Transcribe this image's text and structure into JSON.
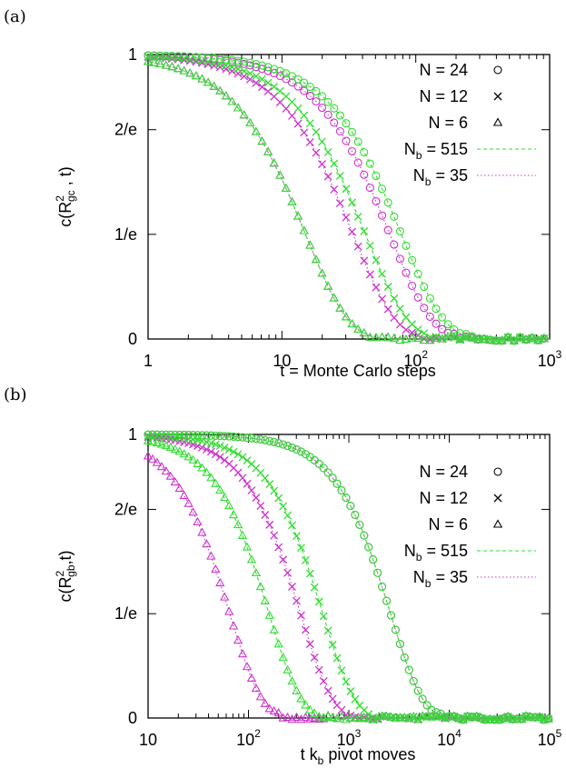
{
  "colors": {
    "green": "#33dd33",
    "magenta": "#cc33cc",
    "gray": "#555555"
  },
  "chart_data": [
    {
      "panel": "(a)",
      "type": "scatter",
      "xscale": "log",
      "xlim": [
        1,
        1000
      ],
      "ylim": [
        0,
        1
      ],
      "xticks": [
        {
          "v": 1,
          "base": "1",
          "exp": ""
        },
        {
          "v": 10,
          "base": "10",
          "exp": ""
        },
        {
          "v": 100,
          "base": "10",
          "exp": "2"
        },
        {
          "v": 1000,
          "base": "10",
          "exp": "3"
        }
      ],
      "yticks": [
        "0",
        "1/e",
        "2/e",
        "1"
      ],
      "xlabel": "t = Monte Carlo steps",
      "ylabel": {
        "pre": "c(R",
        "sup": "2",
        "sub": "gc",
        "post": " , t)"
      },
      "legend_position": "top-right",
      "legend": [
        {
          "text": "N = 24",
          "symbol": "circle"
        },
        {
          "text": "N = 12",
          "symbol": "cross"
        },
        {
          "text": "N =  6",
          "symbol": "triangle"
        },
        {
          "text_pre": "N",
          "text_sub": "b",
          "text_post": " = 515",
          "symbol": "dashed"
        },
        {
          "text_pre": "N",
          "text_sub": "b",
          "text_post": " =   35",
          "symbol": "dotted"
        }
      ],
      "series": [
        {
          "marker": "circle",
          "tau_green": 78,
          "tau_magenta": 64
        },
        {
          "marker": "cross",
          "tau_green": 42,
          "tau_magenta": 34
        },
        {
          "marker": "triangle",
          "tau_green": 15,
          "tau_magenta": 15
        }
      ]
    },
    {
      "panel": "(b)",
      "type": "scatter",
      "xscale": "log",
      "xlim": [
        10,
        100000
      ],
      "ylim": [
        0,
        1
      ],
      "xticks": [
        {
          "v": 10,
          "base": "10",
          "exp": ""
        },
        {
          "v": 100,
          "base": "10",
          "exp": "2"
        },
        {
          "v": 1000,
          "base": "10",
          "exp": "3"
        },
        {
          "v": 10000,
          "base": "10",
          "exp": "4"
        },
        {
          "v": 100000,
          "base": "10",
          "exp": "5"
        }
      ],
      "yticks": [
        "0",
        "1/e",
        "2/e",
        "1"
      ],
      "xlabel": {
        "pre": "t k",
        "sub": "b",
        "post": " pivot moves"
      },
      "ylabel": {
        "pre": "c(R",
        "sup": "2",
        "sub": "gb",
        "post": ",t)"
      },
      "legend_position": "top-right",
      "legend": [
        {
          "text": "N = 24",
          "symbol": "circle"
        },
        {
          "text": "N = 12",
          "symbol": "cross"
        },
        {
          "text": "N =  6",
          "symbol": "triangle"
        },
        {
          "text_pre": "N",
          "text_sub": "b",
          "text_post": " = 515",
          "symbol": "dashed"
        },
        {
          "text_pre": "N",
          "text_sub": "b",
          "text_post": " =   35",
          "symbol": "dotted"
        }
      ],
      "series": [
        {
          "marker": "circle",
          "tau_green": 2600,
          "tau_magenta": 2600
        },
        {
          "marker": "cross",
          "tau_green": 550,
          "tau_magenta": 330
        },
        {
          "marker": "triangle",
          "tau_green": 160,
          "tau_magenta": 65
        }
      ]
    }
  ]
}
